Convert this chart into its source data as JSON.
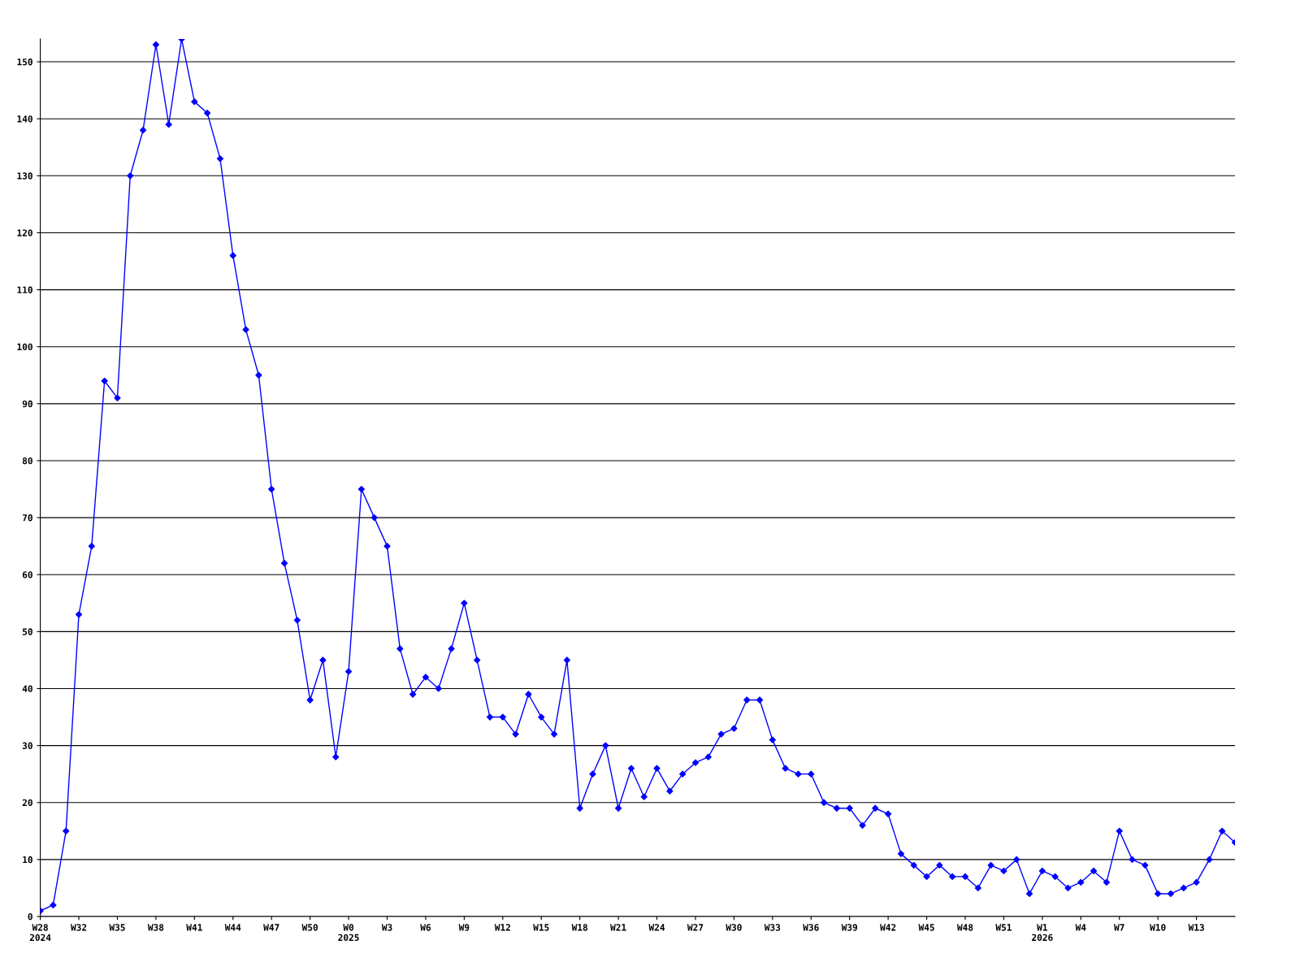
{
  "chart_data": {
    "type": "line",
    "categories": [
      "W28\n2024",
      null,
      null,
      "W32",
      null,
      null,
      "W35",
      null,
      null,
      "W38",
      null,
      null,
      "W41",
      null,
      null,
      "W44",
      null,
      null,
      "W47",
      null,
      null,
      "W50",
      null,
      null,
      "W0\n2025",
      null,
      null,
      "W3",
      null,
      null,
      "W6",
      null,
      null,
      "W9",
      null,
      null,
      "W12",
      null,
      null,
      "W15",
      null,
      null,
      "W18",
      null,
      null,
      "W21",
      null,
      null,
      "W24",
      null,
      null,
      "W27",
      null,
      null,
      "W30",
      null,
      null,
      "W33",
      null,
      null,
      "W36",
      null,
      null,
      "W39",
      null,
      null,
      "W42",
      null,
      null,
      "W45",
      null,
      null,
      "W48",
      null,
      null,
      "W51",
      null,
      null,
      "W1\n2026",
      null,
      null,
      "W4",
      null,
      null,
      "W7",
      null,
      null,
      "W10",
      null,
      null,
      "W13",
      null,
      null,
      null
    ],
    "series": [
      {
        "color": "#0000ff",
        "values": [
          1,
          2,
          15,
          53,
          65,
          94,
          91,
          130,
          138,
          153,
          139,
          154,
          143,
          141,
          133,
          116,
          103,
          95,
          75,
          62,
          52,
          38,
          45,
          28,
          43,
          75,
          70,
          65,
          47,
          39,
          42,
          40,
          47,
          55,
          45,
          35,
          35,
          32,
          39,
          35,
          32,
          45,
          19,
          25,
          30,
          19,
          26,
          21,
          26,
          22,
          25,
          27,
          28,
          32,
          33,
          38,
          38,
          31,
          26,
          25,
          25,
          20,
          19,
          19,
          16,
          19,
          18,
          11,
          9,
          7,
          9,
          7,
          7,
          5,
          9,
          8,
          10,
          4,
          8,
          7,
          5,
          6,
          8,
          6,
          15,
          10,
          9,
          4,
          4,
          5,
          6,
          10,
          15,
          13
        ]
      }
    ],
    "ylim": [
      0,
      154
    ],
    "yticks": [
      0,
      10,
      20,
      30,
      40,
      50,
      60,
      70,
      80,
      90,
      100,
      110,
      120,
      130,
      140,
      150
    ],
    "grid": "y",
    "marker": "diamond",
    "line_style": "solid",
    "legend": false
  }
}
